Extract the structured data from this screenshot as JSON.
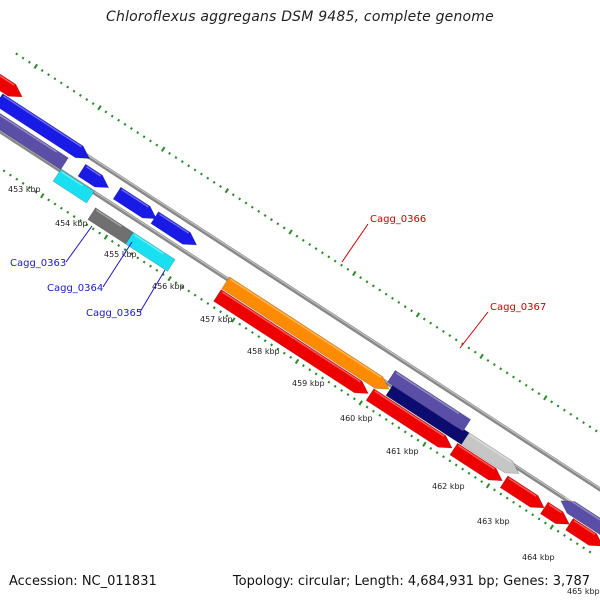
{
  "title": "Chloroflexus aggregans DSM 9485, complete genome",
  "footer": {
    "accession": "Accession: NC_011831",
    "summary": "Topology: circular; Length: 4,684,931 bp; Genes: 3,787"
  },
  "ticks": [
    "453 kbp",
    "454 kbp",
    "455 kbp",
    "456 kbp",
    "457 kbp",
    "458 kbp",
    "459 kbp",
    "460 kbp",
    "461 kbp",
    "462 kbp",
    "463 kbp",
    "464 kbp",
    "465 kbp"
  ],
  "gene_labels": {
    "g0363": "Cagg_0363",
    "g0364": "Cagg_0364",
    "g0365": "Cagg_0365",
    "g0366": "Cagg_0366",
    "g0367": "Cagg_0367"
  },
  "colors": {
    "red": "#ee0000",
    "blue": "#1a1ae6",
    "navy": "#0b0b70",
    "slate": "#5a4ea6",
    "cyan": "#19e0f0",
    "gray": "#707070",
    "lightgray": "#c6c6c6",
    "orange": "#ff8c00",
    "tick_green": "#2a8a2a",
    "backbone": "#888888",
    "label_blue": "#1a1ac8",
    "label_red": "#cc0000"
  }
}
